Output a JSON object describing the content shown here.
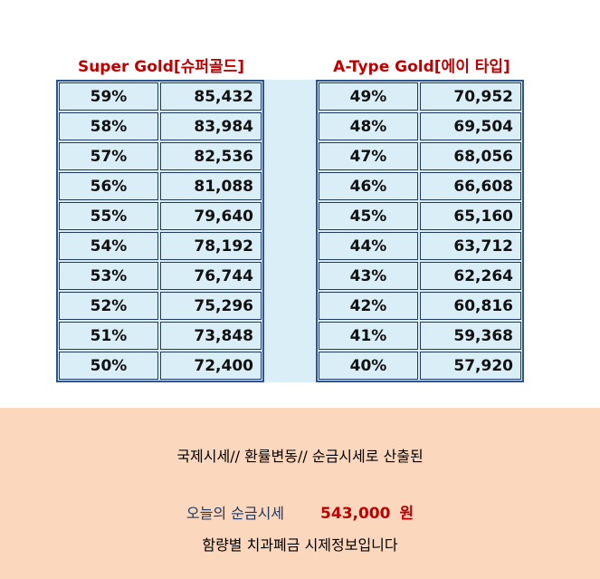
{
  "left_table": {
    "title": "Super Gold[슈퍼골드]",
    "rows": [
      {
        "pct": "59%",
        "value": "85,432"
      },
      {
        "pct": "58%",
        "value": "83,984"
      },
      {
        "pct": "57%",
        "value": "82,536"
      },
      {
        "pct": "56%",
        "value": "81,088"
      },
      {
        "pct": "55%",
        "value": "79,640"
      },
      {
        "pct": "54%",
        "value": "78,192"
      },
      {
        "pct": "53%",
        "value": "76,744"
      },
      {
        "pct": "52%",
        "value": "75,296"
      },
      {
        "pct": "51%",
        "value": "73,848"
      },
      {
        "pct": "50%",
        "value": "72,400"
      }
    ]
  },
  "right_table": {
    "title": "A-Type Gold[에이 타입]",
    "rows": [
      {
        "pct": "49%",
        "value": "70,952"
      },
      {
        "pct": "48%",
        "value": "69,504"
      },
      {
        "pct": "47%",
        "value": "68,056"
      },
      {
        "pct": "46%",
        "value": "66,608"
      },
      {
        "pct": "45%",
        "value": "65,160"
      },
      {
        "pct": "44%",
        "value": "63,712"
      },
      {
        "pct": "43%",
        "value": "62,264"
      },
      {
        "pct": "42%",
        "value": "60,816"
      },
      {
        "pct": "41%",
        "value": "59,368"
      },
      {
        "pct": "40%",
        "value": "57,920"
      }
    ]
  },
  "footer": {
    "line1": "국제시세// 환률변동// 순금시세로 산출된",
    "price_label": "오늘의 순금시세",
    "price_value": "543,000",
    "price_unit": "원",
    "line3": "함량별 치과폐금 시제정보입니다"
  },
  "colors": {
    "title_red": "#c00000",
    "table_border": "#2f5496",
    "cell_fill": "#daeef7",
    "footer_bg": "#fbd7bd",
    "price_label": "#1f3864"
  }
}
